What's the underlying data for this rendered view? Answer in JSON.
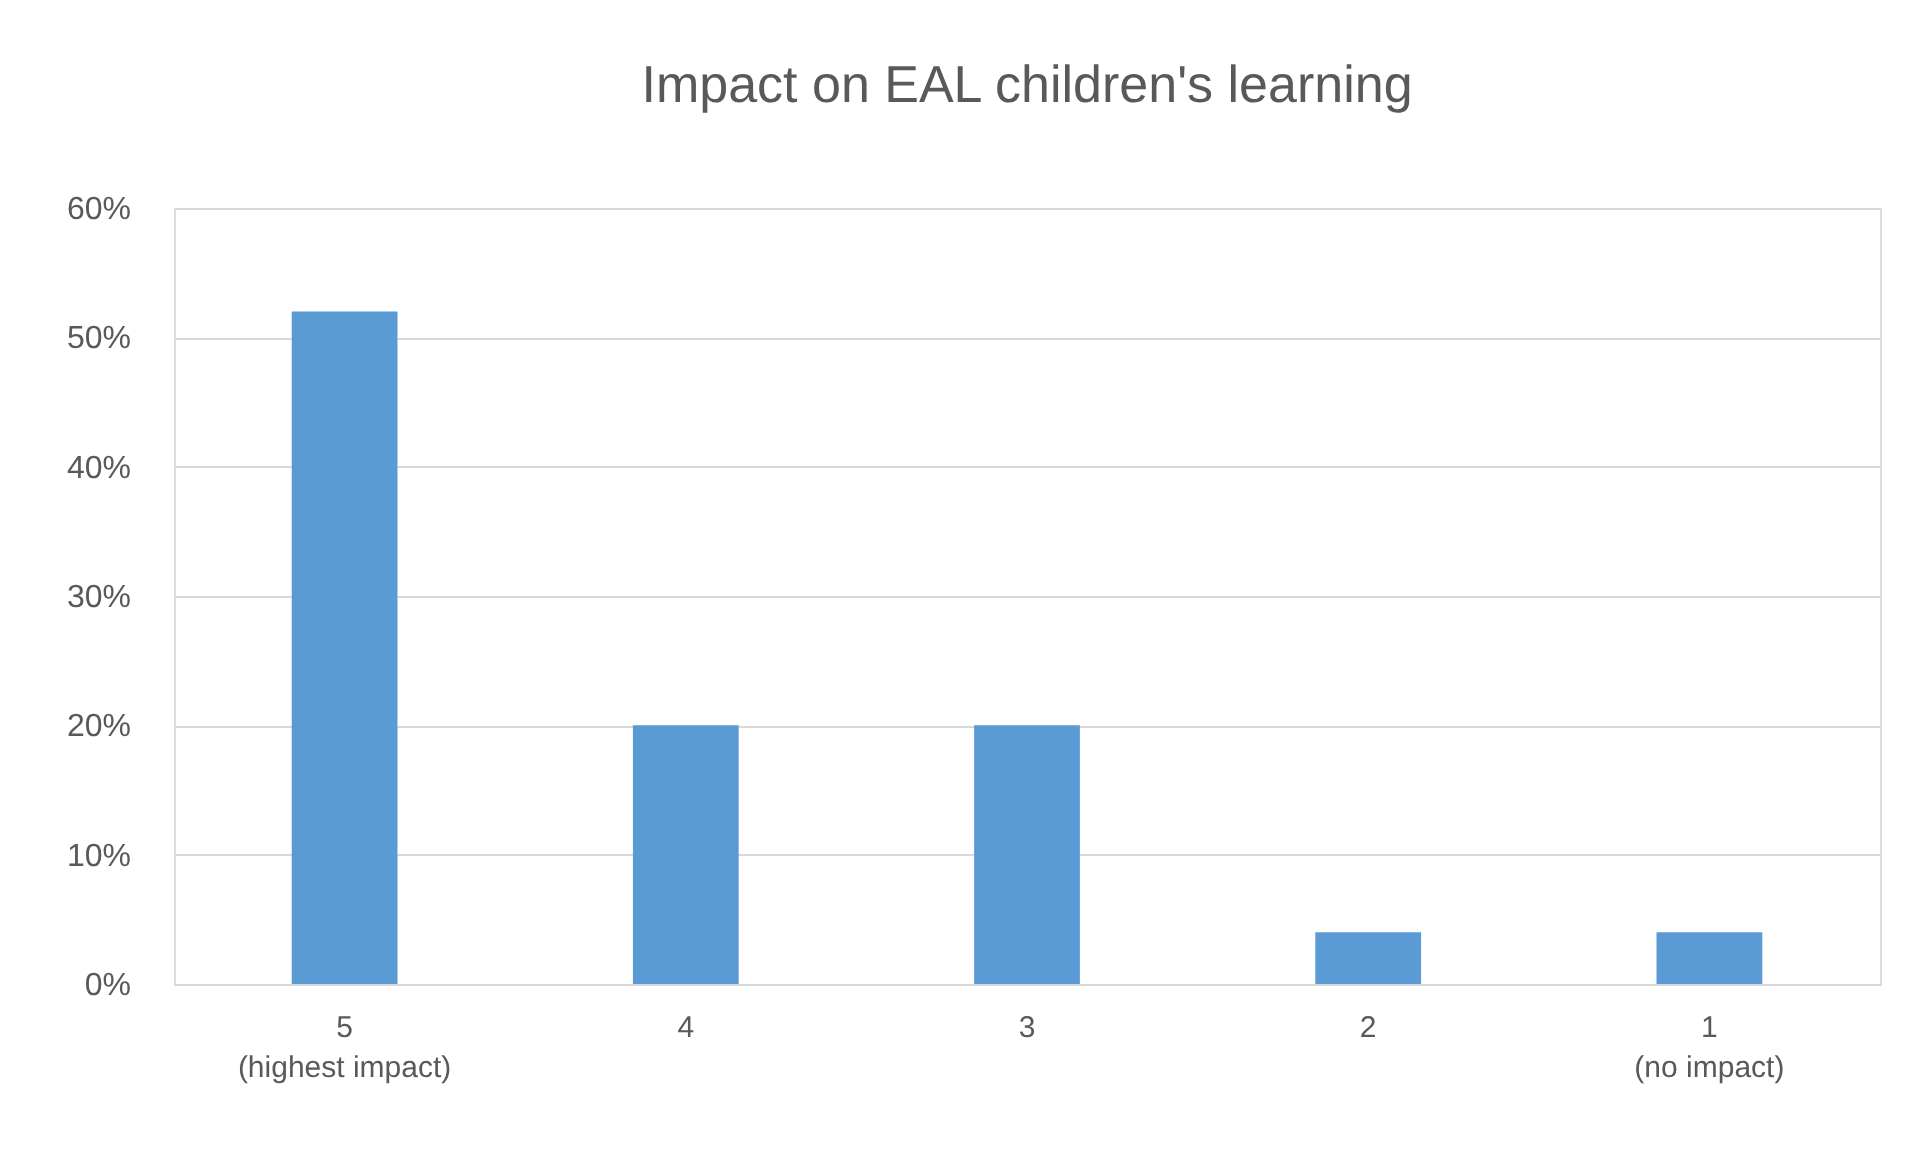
{
  "chart_data": {
    "type": "bar",
    "title": "Impact on EAL children's learning",
    "categories": [
      "5\n(highest impact)",
      "4",
      "3",
      "2",
      "1\n(no impact)"
    ],
    "values": [
      52,
      20,
      20,
      4,
      4
    ],
    "color": "#5b9bd5",
    "ylim": [
      0,
      60
    ],
    "yticks": [
      {
        "value": 0,
        "label": "0%"
      },
      {
        "value": 10,
        "label": "10%"
      },
      {
        "value": 20,
        "label": "20%"
      },
      {
        "value": 30,
        "label": "30%"
      },
      {
        "value": 40,
        "label": "40%"
      },
      {
        "value": 50,
        "label": "50%"
      },
      {
        "value": 60,
        "label": "60%"
      }
    ],
    "grid": "y"
  }
}
